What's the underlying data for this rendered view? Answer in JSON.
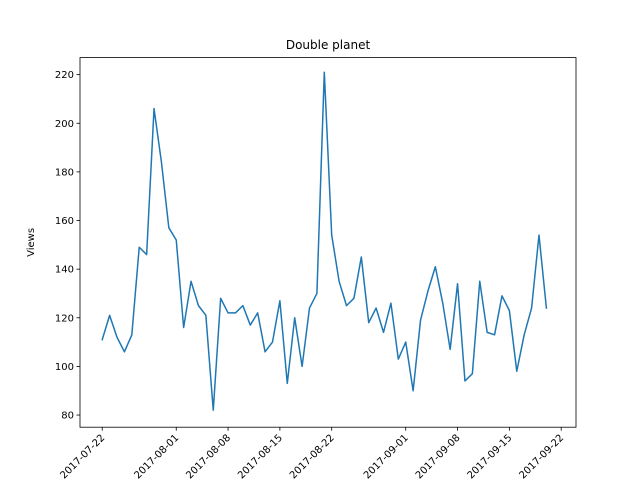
{
  "chart_data": {
    "type": "line",
    "title": "Double planet",
    "xlabel": "",
    "ylabel": "Views",
    "x_tick_labels": [
      "2017-07-22",
      "2017-08-01",
      "2017-08-08",
      "2017-08-15",
      "2017-08-22",
      "2017-09-01",
      "2017-09-08",
      "2017-09-15",
      "2017-09-22"
    ],
    "x_tick_dates": [
      "2017-07-22",
      "2017-08-01",
      "2017-08-08",
      "2017-08-15",
      "2017-08-22",
      "2017-09-01",
      "2017-09-08",
      "2017-09-15",
      "2017-09-22"
    ],
    "y_ticks": [
      80,
      100,
      120,
      140,
      160,
      180,
      200,
      220
    ],
    "xlim": [
      "2017-07-19",
      "2017-09-24"
    ],
    "ylim": [
      75,
      227
    ],
    "grid": false,
    "line_color": "#1f77b4",
    "series": [
      {
        "x": [
          "2017-07-22",
          "2017-07-23",
          "2017-07-24",
          "2017-07-25",
          "2017-07-26",
          "2017-07-27",
          "2017-07-28",
          "2017-07-29",
          "2017-07-30",
          "2017-07-31",
          "2017-08-01",
          "2017-08-02",
          "2017-08-03",
          "2017-08-04",
          "2017-08-05",
          "2017-08-06",
          "2017-08-07",
          "2017-08-08",
          "2017-08-09",
          "2017-08-10",
          "2017-08-11",
          "2017-08-12",
          "2017-08-13",
          "2017-08-14",
          "2017-08-15",
          "2017-08-16",
          "2017-08-17",
          "2017-08-18",
          "2017-08-19",
          "2017-08-20",
          "2017-08-21",
          "2017-08-22",
          "2017-08-23",
          "2017-08-24",
          "2017-08-25",
          "2017-08-26",
          "2017-08-27",
          "2017-08-28",
          "2017-08-29",
          "2017-08-30",
          "2017-08-31",
          "2017-09-01",
          "2017-09-02",
          "2017-09-03",
          "2017-09-04",
          "2017-09-05",
          "2017-09-06",
          "2017-09-07",
          "2017-09-08",
          "2017-09-09",
          "2017-09-10",
          "2017-09-11",
          "2017-09-12",
          "2017-09-13",
          "2017-09-14",
          "2017-09-15",
          "2017-09-16",
          "2017-09-17",
          "2017-09-18",
          "2017-09-19",
          "2017-09-20",
          "2017-09-21"
        ],
        "values": [
          111,
          121,
          112,
          106,
          113,
          149,
          146,
          206,
          184,
          157,
          152,
          116,
          135,
          125,
          121,
          82,
          128,
          122,
          122,
          125,
          117,
          122,
          106,
          110,
          127,
          93,
          120,
          100,
          124,
          130,
          221,
          154,
          135,
          125,
          128,
          145,
          118,
          124,
          114,
          126,
          103,
          110,
          90,
          119,
          131,
          141,
          126,
          107,
          134,
          94,
          97,
          135,
          114,
          113,
          129,
          123,
          98,
          113,
          124,
          154,
          124,
          null
        ]
      }
    ]
  }
}
